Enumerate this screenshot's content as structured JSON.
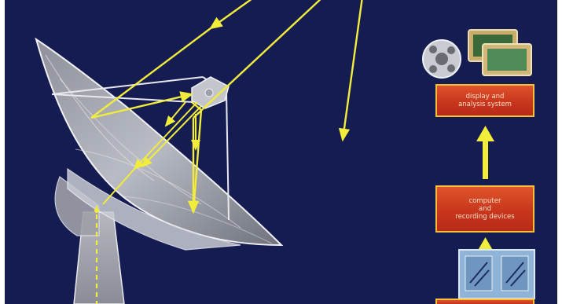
{
  "boxes": {
    "display": {
      "line1": "display and",
      "line2": "analysis system"
    },
    "computer": {
      "line1": "computer",
      "line2": "and",
      "line3": "recording devices"
    }
  },
  "colors": {
    "background": "#141c52",
    "signal_arrow": "#f2ec3a",
    "box_fill": "#d2421f",
    "box_border": "#f4c23a",
    "dish": "#b9bcc4"
  },
  "icons": [
    "film-reel-icon",
    "monitor-screen-icon",
    "receiver-electronics-icon"
  ]
}
